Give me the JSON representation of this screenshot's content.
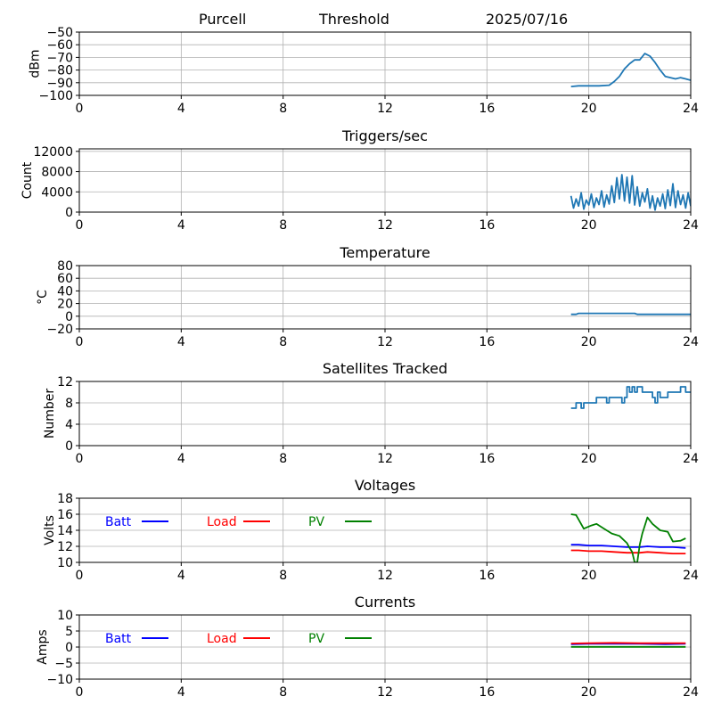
{
  "header": {
    "station": "Purcell",
    "mode": "Threshold",
    "date": "2025/07/16"
  },
  "chart_data": [
    {
      "type": "line",
      "title": "",
      "xlabel": "",
      "ylabel": "dBm",
      "xlim": [
        0,
        24
      ],
      "ylim": [
        -100,
        -50
      ],
      "xticks": [
        "0",
        "4",
        "8",
        "12",
        "16",
        "20",
        "24"
      ],
      "yticks": [
        "-100",
        "-90",
        "-80",
        "-70",
        "-60",
        "-50"
      ],
      "grid": true,
      "series": [
        {
          "color": "#1f77b4",
          "x": [
            19.3,
            19.6,
            20.0,
            20.4,
            20.8,
            21.0,
            21.2,
            21.4,
            21.6,
            21.8,
            22.0,
            22.2,
            22.4,
            22.6,
            22.8,
            23.0,
            23.2,
            23.4,
            23.6,
            23.8,
            24.0
          ],
          "y": [
            -93,
            -92.5,
            -92.5,
            -92.5,
            -92,
            -89,
            -85,
            -79,
            -75,
            -72,
            -72,
            -67,
            -69,
            -74,
            -80,
            -85,
            -86,
            -87,
            -86,
            -87,
            -88
          ]
        }
      ]
    },
    {
      "type": "line",
      "title": "Triggers/sec",
      "xlabel": "",
      "ylabel": "Count",
      "xlim": [
        0,
        24
      ],
      "ylim": [
        0,
        12500
      ],
      "xticks": [
        "0",
        "4",
        "8",
        "12",
        "16",
        "20",
        "24"
      ],
      "yticks": [
        "0",
        "4000",
        "8000",
        "12000"
      ],
      "grid": true,
      "series": [
        {
          "color": "#1f77b4",
          "x": [
            19.3,
            19.4,
            19.5,
            19.6,
            19.7,
            19.8,
            19.9,
            20.0,
            20.1,
            20.2,
            20.3,
            20.4,
            20.5,
            20.6,
            20.7,
            20.8,
            20.9,
            21.0,
            21.1,
            21.2,
            21.3,
            21.4,
            21.5,
            21.6,
            21.7,
            21.8,
            21.9,
            22.0,
            22.1,
            22.2,
            22.3,
            22.4,
            22.5,
            22.6,
            22.7,
            22.8,
            22.9,
            23.0,
            23.1,
            23.2,
            23.3,
            23.4,
            23.5,
            23.6,
            23.7,
            23.8,
            23.9,
            24.0
          ],
          "y": [
            3200,
            800,
            2600,
            1200,
            3800,
            600,
            2400,
            1400,
            3600,
            900,
            2800,
            1500,
            4200,
            1000,
            3400,
            1600,
            5200,
            1900,
            6800,
            2600,
            7400,
            2200,
            6900,
            1800,
            7200,
            1400,
            5000,
            1200,
            3800,
            2000,
            4600,
            800,
            3200,
            400,
            2800,
            1200,
            3600,
            700,
            4400,
            1300,
            5600,
            900,
            4200,
            1500,
            3400,
            800,
            3800,
            1200
          ]
        }
      ]
    },
    {
      "type": "line",
      "title": "Temperature",
      "xlabel": "",
      "ylabel": "°C",
      "xlim": [
        0,
        24
      ],
      "ylim": [
        -20,
        80
      ],
      "xticks": [
        "0",
        "4",
        "8",
        "12",
        "16",
        "20",
        "24"
      ],
      "yticks": [
        "-20",
        "0",
        "20",
        "40",
        "60",
        "80"
      ],
      "grid": true,
      "series": [
        {
          "color": "#1f77b4",
          "x": [
            19.3,
            19.5,
            19.6,
            20.0,
            21.0,
            21.8,
            21.9,
            23.0,
            24.0
          ],
          "y": [
            3,
            3,
            4.5,
            4.5,
            4.5,
            4.5,
            3,
            3,
            3
          ]
        }
      ]
    },
    {
      "type": "line",
      "title": "Satellites Tracked",
      "xlabel": "",
      "ylabel": "Number",
      "xlim": [
        0,
        24
      ],
      "ylim": [
        0,
        12
      ],
      "xticks": [
        "0",
        "4",
        "8",
        "12",
        "16",
        "20",
        "24"
      ],
      "yticks": [
        "0",
        "4",
        "8",
        "12"
      ],
      "grid": true,
      "series": [
        {
          "color": "#1f77b4",
          "x": [
            19.3,
            19.5,
            19.5,
            19.7,
            19.7,
            19.8,
            19.8,
            20.3,
            20.3,
            20.7,
            20.7,
            20.8,
            20.8,
            21.3,
            21.3,
            21.4,
            21.4,
            21.5,
            21.5,
            21.6,
            21.6,
            21.7,
            21.7,
            21.8,
            21.8,
            21.9,
            21.9,
            22.1,
            22.1,
            22.5,
            22.5,
            22.6,
            22.6,
            22.7,
            22.7,
            22.8,
            22.8,
            23.1,
            23.1,
            23.3,
            23.3,
            23.6,
            23.6,
            23.8,
            23.8,
            24.0
          ],
          "y": [
            7,
            7,
            8,
            8,
            7,
            7,
            8,
            8,
            9,
            9,
            8,
            8,
            9,
            9,
            8,
            8,
            9,
            9,
            11,
            11,
            10,
            10,
            11,
            11,
            10,
            10,
            11,
            11,
            10,
            10,
            9,
            9,
            8,
            8,
            10,
            10,
            9,
            9,
            10,
            10,
            10,
            10,
            11,
            11,
            10,
            10
          ]
        }
      ]
    },
    {
      "type": "line",
      "title": "Voltages",
      "xlabel": "",
      "ylabel": "Volts",
      "xlim": [
        0,
        24
      ],
      "ylim": [
        10,
        18
      ],
      "xticks": [
        "0",
        "4",
        "8",
        "12",
        "16",
        "20",
        "24"
      ],
      "yticks": [
        "10",
        "12",
        "14",
        "16",
        "18"
      ],
      "grid": true,
      "legend_position": "top-left",
      "series": [
        {
          "name": "Batt",
          "color": "#0000ff",
          "x": [
            19.3,
            19.6,
            20.0,
            20.5,
            21.0,
            21.5,
            22.0,
            22.3,
            22.8,
            23.3,
            23.8
          ],
          "y": [
            12.2,
            12.2,
            12.1,
            12.1,
            12.0,
            11.9,
            11.9,
            12.0,
            11.9,
            11.9,
            11.8
          ]
        },
        {
          "name": "Load",
          "color": "#ff0000",
          "x": [
            19.3,
            19.6,
            20.0,
            20.5,
            21.0,
            21.5,
            22.0,
            22.3,
            22.8,
            23.3,
            23.8
          ],
          "y": [
            11.5,
            11.5,
            11.4,
            11.4,
            11.3,
            11.2,
            11.2,
            11.3,
            11.2,
            11.1,
            11.1
          ]
        },
        {
          "name": "PV",
          "color": "#008000",
          "x": [
            19.3,
            19.5,
            19.8,
            20.1,
            20.3,
            20.6,
            20.9,
            21.2,
            21.5,
            21.6,
            21.7,
            21.8,
            21.9,
            22.0,
            22.1,
            22.3,
            22.5,
            22.8,
            23.1,
            23.3,
            23.6,
            23.8
          ],
          "y": [
            16.0,
            15.9,
            14.2,
            14.6,
            14.8,
            14.2,
            13.6,
            13.3,
            12.4,
            11.8,
            11.3,
            10.0,
            10.0,
            12.2,
            13.6,
            15.6,
            14.8,
            14.0,
            13.8,
            12.6,
            12.7,
            13.0
          ]
        }
      ]
    },
    {
      "type": "line",
      "title": "Currents",
      "xlabel": "",
      "ylabel": "Amps",
      "xlim": [
        0,
        24
      ],
      "ylim": [
        -10,
        10
      ],
      "xticks": [
        "0",
        "4",
        "8",
        "12",
        "16",
        "20",
        "24"
      ],
      "yticks": [
        "-10",
        "-5",
        "0",
        "5",
        "10"
      ],
      "grid": true,
      "legend_position": "top-left",
      "series": [
        {
          "name": "Batt",
          "color": "#0000ff",
          "x": [
            19.3,
            20.0,
            21.0,
            22.0,
            23.0,
            23.8
          ],
          "y": [
            0.9,
            1.0,
            1.0,
            1.0,
            0.9,
            1.0
          ]
        },
        {
          "name": "Load",
          "color": "#ff0000",
          "x": [
            19.3,
            20.0,
            21.0,
            22.0,
            23.0,
            23.8
          ],
          "y": [
            1.1,
            1.2,
            1.3,
            1.2,
            1.2,
            1.2
          ]
        },
        {
          "name": "PV",
          "color": "#008000",
          "x": [
            19.3,
            20.0,
            21.0,
            22.0,
            23.0,
            23.8
          ],
          "y": [
            0.05,
            0.05,
            0.05,
            0.05,
            0.05,
            0.05
          ]
        }
      ]
    }
  ]
}
